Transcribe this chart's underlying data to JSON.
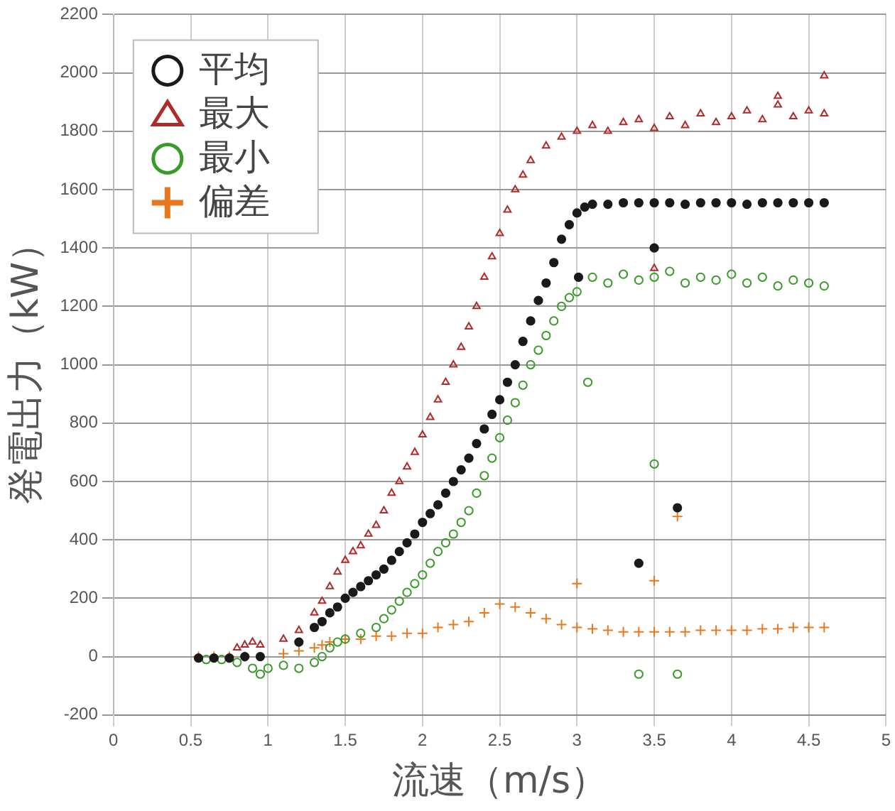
{
  "chart_data": {
    "type": "scatter",
    "xlabel": "流速（m/s）",
    "ylabel": "発電出力（kW）",
    "xlim": [
      0,
      5
    ],
    "xticks": [
      0,
      0.5,
      1,
      1.5,
      2,
      2.5,
      3,
      3.5,
      4,
      4.5,
      5
    ],
    "ylim": [
      -200,
      2200
    ],
    "yticks": [
      -200,
      0,
      200,
      400,
      600,
      800,
      1000,
      1200,
      1400,
      1600,
      1800,
      2000,
      2200
    ],
    "grid": true,
    "legend": "top left",
    "series": [
      {
        "name": "平均",
        "color": "#1a1a1a",
        "marker": "circle",
        "x": [
          0.55,
          0.65,
          0.75,
          0.85,
          0.95,
          1.2,
          1.3,
          1.35,
          1.4,
          1.45,
          1.5,
          1.55,
          1.6,
          1.65,
          1.7,
          1.75,
          1.8,
          1.85,
          1.9,
          1.95,
          2.0,
          2.05,
          2.1,
          2.15,
          2.2,
          2.25,
          2.3,
          2.35,
          2.4,
          2.45,
          2.5,
          2.55,
          2.6,
          2.65,
          2.7,
          2.75,
          2.8,
          2.85,
          2.9,
          2.95,
          3.0,
          3.05,
          3.1,
          3.2,
          3.3,
          3.4,
          3.5,
          3.6,
          3.7,
          3.8,
          3.9,
          4.0,
          4.1,
          4.2,
          4.3,
          4.4,
          4.5,
          4.6,
          3.01,
          3.4,
          3.5,
          3.65
        ],
        "values": [
          -5,
          -5,
          -5,
          0,
          0,
          50,
          100,
          120,
          150,
          170,
          200,
          220,
          240,
          260,
          280,
          300,
          330,
          360,
          390,
          420,
          460,
          490,
          520,
          560,
          600,
          640,
          680,
          730,
          780,
          830,
          880,
          940,
          1000,
          1080,
          1150,
          1220,
          1280,
          1350,
          1430,
          1480,
          1520,
          1540,
          1550,
          1550,
          1555,
          1555,
          1555,
          1555,
          1550,
          1555,
          1555,
          1555,
          1550,
          1555,
          1555,
          1555,
          1555,
          1555,
          1300,
          320,
          1400,
          510
        ]
      },
      {
        "name": "最大",
        "color": "#b02a2a",
        "marker": "triangle",
        "x": [
          0.8,
          0.85,
          0.9,
          0.95,
          1.1,
          1.2,
          1.3,
          1.35,
          1.4,
          1.45,
          1.5,
          1.55,
          1.6,
          1.65,
          1.7,
          1.75,
          1.8,
          1.85,
          1.9,
          1.95,
          2.0,
          2.05,
          2.1,
          2.15,
          2.2,
          2.25,
          2.3,
          2.35,
          2.4,
          2.45,
          2.5,
          2.55,
          2.6,
          2.65,
          2.7,
          2.8,
          2.9,
          3.0,
          3.1,
          3.2,
          3.3,
          3.4,
          3.5,
          3.6,
          3.7,
          3.8,
          3.9,
          4.0,
          4.1,
          4.2,
          4.3,
          4.4,
          4.5,
          4.6,
          3.5,
          4.3,
          4.6
        ],
        "values": [
          30,
          40,
          50,
          40,
          60,
          90,
          150,
          190,
          240,
          290,
          330,
          360,
          380,
          420,
          450,
          500,
          560,
          600,
          650,
          700,
          760,
          820,
          880,
          940,
          1000,
          1060,
          1130,
          1200,
          1300,
          1370,
          1450,
          1530,
          1600,
          1650,
          1700,
          1750,
          1780,
          1800,
          1820,
          1800,
          1830,
          1840,
          1810,
          1850,
          1820,
          1860,
          1830,
          1850,
          1870,
          1840,
          1890,
          1850,
          1870,
          1860,
          1330,
          1920,
          1990
        ]
      },
      {
        "name": "最小",
        "color": "#3a9a2a",
        "marker": "circle",
        "x": [
          0.6,
          0.7,
          0.8,
          0.9,
          0.95,
          1.0,
          1.1,
          1.2,
          1.3,
          1.35,
          1.4,
          1.45,
          1.5,
          1.6,
          1.7,
          1.75,
          1.8,
          1.85,
          1.9,
          1.95,
          2.0,
          2.05,
          2.1,
          2.15,
          2.2,
          2.25,
          2.3,
          2.35,
          2.4,
          2.45,
          2.5,
          2.55,
          2.6,
          2.65,
          2.7,
          2.75,
          2.8,
          2.85,
          2.9,
          2.95,
          3.0,
          3.1,
          3.2,
          3.3,
          3.4,
          3.5,
          3.6,
          3.7,
          3.8,
          3.9,
          4.0,
          4.1,
          4.2,
          4.3,
          4.4,
          4.5,
          4.6,
          3.4,
          3.65,
          3.5,
          3.07
        ],
        "values": [
          -10,
          -10,
          -20,
          -40,
          -60,
          -40,
          -30,
          -40,
          -20,
          0,
          30,
          50,
          60,
          80,
          100,
          130,
          160,
          190,
          220,
          250,
          280,
          320,
          360,
          390,
          420,
          460,
          500,
          560,
          620,
          680,
          750,
          810,
          870,
          930,
          1000,
          1050,
          1100,
          1150,
          1200,
          1230,
          1250,
          1300,
          1280,
          1310,
          1290,
          1300,
          1320,
          1280,
          1300,
          1290,
          1310,
          1280,
          1300,
          1270,
          1290,
          1280,
          1270,
          -60,
          -60,
          660,
          940
        ]
      },
      {
        "name": "偏差",
        "color": "#e8771e",
        "marker": "cross",
        "x": [
          0.55,
          0.65,
          0.75,
          0.85,
          0.95,
          1.1,
          1.2,
          1.3,
          1.35,
          1.4,
          1.5,
          1.6,
          1.7,
          1.8,
          1.9,
          2.0,
          2.1,
          2.2,
          2.3,
          2.4,
          2.5,
          2.6,
          2.7,
          2.8,
          2.9,
          3.0,
          3.1,
          3.2,
          3.3,
          3.4,
          3.5,
          3.6,
          3.7,
          3.8,
          3.9,
          4.0,
          4.1,
          4.2,
          4.3,
          4.4,
          4.5,
          4.6,
          3.65,
          3.5,
          3.0
        ],
        "values": [
          0,
          0,
          0,
          0,
          null,
          10,
          20,
          30,
          40,
          50,
          60,
          60,
          70,
          70,
          80,
          80,
          100,
          110,
          120,
          150,
          180,
          170,
          150,
          130,
          110,
          100,
          95,
          90,
          85,
          85,
          85,
          85,
          85,
          90,
          90,
          90,
          90,
          95,
          95,
          100,
          100,
          100,
          480,
          260,
          250
        ]
      }
    ]
  }
}
